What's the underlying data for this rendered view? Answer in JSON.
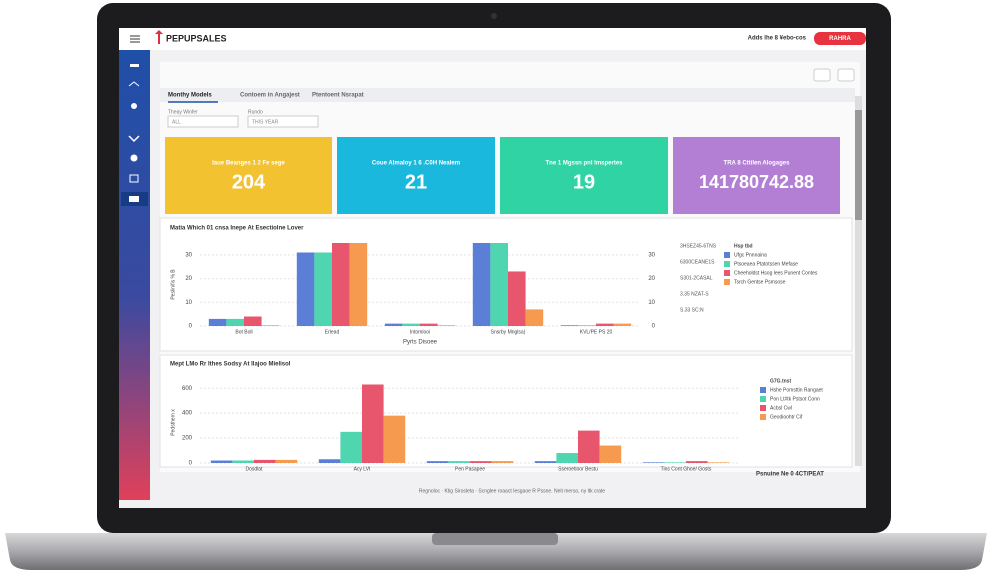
{
  "header": {
    "logo": "PEPUPSALES",
    "user": "Adds lhe 8 ¥ebo-cos",
    "button": "RAHRA"
  },
  "tabs": [
    "Monthy Models",
    "Contoem in Angajest",
    "Ptentoent Nsrapat"
  ],
  "filters": [
    {
      "label": "Theay Winfer",
      "value": "ALL"
    },
    {
      "label": "Rundo",
      "value": "THIS YEAR"
    }
  ],
  "kpis": [
    {
      "label": "Iaue Beanges 1 2 Fe sege",
      "value": 204,
      "color": "#f2c230"
    },
    {
      "label": "Coue Almaloy 1 6 .C0H Nealem",
      "value": 21,
      "color": "#1ab8dc"
    },
    {
      "label": "Tne 1 Mgssn pnl Imspertes",
      "value": 19,
      "color": "#2fd3a4"
    },
    {
      "label": "TRA 8 Cttilen Alogages",
      "value": 141780742.88,
      "color": "#b27fd4"
    }
  ],
  "charts": [
    {
      "type": "bar",
      "title": "Matia Which 01 cnsa Inepe At Esectiolne Lover",
      "y_label": "Peslinifis % B",
      "x_label": "Pyrts Disoee",
      "categories": [
        "Bot Boll",
        "Erlead",
        "Intomlooi",
        "Snsrby Mnglsa)",
        "KVL/PE PS 20"
      ],
      "series": [
        {
          "name": "Ufgc Pnnnaina",
          "color": "#5b7fd6",
          "values": [
            3,
            31,
            1,
            35,
            0.3
          ]
        },
        {
          "name": "Ptsoeaea Ptatotssen Mefase",
          "color": "#4fd6b0",
          "values": [
            3,
            31,
            1,
            35,
            0.3
          ]
        },
        {
          "name": "Cheeholdst Hsog lees Punent Contes",
          "color": "#e8566e",
          "values": [
            4,
            35,
            1,
            23,
            1
          ]
        },
        {
          "name": "Tsrch Gentse Psmsose",
          "color": "#f59a4e",
          "values": [
            0.3,
            35,
            0.3,
            7,
            1
          ]
        }
      ],
      "ylim": [
        0,
        35
      ],
      "yticks": [
        0,
        10,
        20,
        30
      ],
      "y2ticks": [
        0,
        10,
        20,
        30
      ],
      "grid": true,
      "legend_title": "Hsp tbd",
      "side_notes": [
        "3HSEZ45-6TNS",
        "6300CEANE1S",
        "S301-2CASAL",
        "3.35 NZAT-S",
        "S.33 SC:N"
      ]
    },
    {
      "type": "bar",
      "title": "Mept LMo Rr Ithes Sodsy At Ilajoo Mielisol",
      "y_label": "Pedsthem x",
      "categories": [
        "Dosdlat",
        "Acy LVI",
        "Pen Pasapee",
        "Sseroetioor Bestu",
        "Tins Cont Ghoe/ Gosts"
      ],
      "series": [
        {
          "name": "Hshe Pomsttin Rangaet",
          "color": "#5b7fd6",
          "values": [
            20,
            30,
            15,
            15,
            5
          ]
        },
        {
          "name": "Pon Lt#tk Pstsot Conn",
          "color": "#4fd6b0",
          "values": [
            20,
            250,
            15,
            80,
            5
          ]
        },
        {
          "name": "Acbsl Cwl",
          "color": "#e8566e",
          "values": [
            25,
            630,
            15,
            260,
            15
          ]
        },
        {
          "name": "Geodioohtr Cif",
          "color": "#f59a4e",
          "values": [
            25,
            380,
            15,
            140,
            5
          ]
        }
      ],
      "ylim": [
        0,
        650
      ],
      "yticks": [
        0,
        200,
        400,
        600
      ],
      "grid": true,
      "legend_title": "G7G.tnst"
    }
  ],
  "note": "Psnuine Ne 0 4CT/PEAT",
  "footer": "Regnoloc · Ktig Sirosleta · Scnglee roaact Iesgaoe R Pssne. Neit merso, ny ltk crate"
}
